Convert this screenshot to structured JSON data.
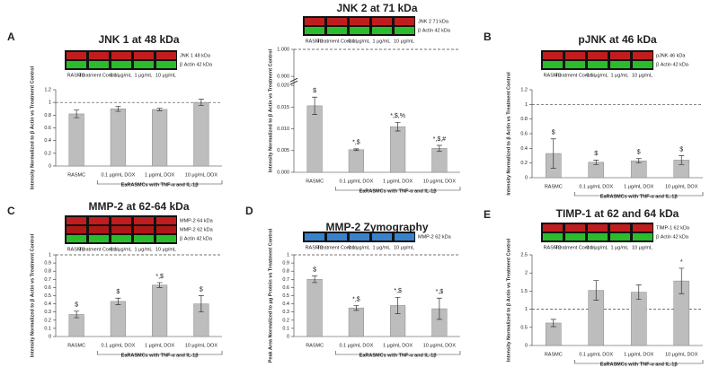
{
  "chart_data": [
    {
      "type": "bar",
      "panel": "A",
      "title": "JNK 1 at 48 kDa",
      "blot": {
        "bands": [
          {
            "label": "JNK 1 48 kDa",
            "color": "#d42020"
          },
          {
            "label": "β Actin 42 kDa",
            "color": "#2fcf2f"
          }
        ],
        "lanes": [
          "RASMC",
          "Treatment Control",
          "0.1 μg/mL",
          "1 μg/mL",
          "10 μg/mL"
        ]
      },
      "ylabel": "Intensity Normalized to β Actin vs Treatment Control",
      "categories": [
        "RASMC",
        "0.1 μg/mL DOX",
        "1 μg/mL DOX",
        "10 μg/mL DOX"
      ],
      "group_label": "EaRASMCs with TNF-α and IL-1β",
      "series": [
        {
          "color": "#bdbdbd",
          "values": [
            0.82,
            0.9,
            0.89,
            1.0
          ],
          "errors": [
            0.06,
            0.04,
            0.02,
            0.05
          ],
          "value_labels": [
            null,
            null,
            null,
            null
          ]
        }
      ],
      "ylim": [
        0,
        1.2
      ],
      "yticks": [
        0,
        0.2,
        0.4,
        0.6,
        0.8,
        1,
        1.2
      ],
      "reference_line": 1
    },
    {
      "type": "bar",
      "title": "JNK 2 at 71 kDa",
      "blot": {
        "bands": [
          {
            "label": "JNK 2 71 kDa",
            "color": "#d42020"
          },
          {
            "label": "β Actin 42 kDa",
            "color": "#2fcf2f"
          }
        ],
        "lanes": [
          "RASMC",
          "Treatment Control",
          "0.1 μg/mL",
          "1 μg/mL",
          "10 μg/mL"
        ]
      },
      "ylabel": "Intensity Normalized to β Actin vs Treatment Control",
      "categories": [
        "RASMC",
        "0.1 μg/mL DOX",
        "1 μg/mL DOX",
        "10 μg/mL DOX"
      ],
      "group_label": "EaRASMCs with TNF-α and IL-1β",
      "series": [
        {
          "color": "#bdbdbd",
          "values": [
            0.0153,
            0.0052,
            0.0105,
            0.0055
          ],
          "errors": [
            0.002,
            0.0002,
            0.001,
            0.0007
          ],
          "value_labels": [
            "$",
            "*,$",
            "*,$,%",
            "*,$,#"
          ]
        }
      ],
      "ylim": [
        0,
        0.02
      ],
      "yticks": [
        {
          "value": 0,
          "label": "0.000"
        },
        {
          "value": 0.005,
          "label": "0.005"
        },
        {
          "value": 0.01,
          "label": "0.010"
        },
        {
          "value": 0.015,
          "label": "0.015"
        },
        {
          "value": 0.02,
          "label": "0.020"
        }
      ],
      "ylim_upper": [
        0.9,
        1.0
      ],
      "yticks_upper": [
        {
          "value": 0.9,
          "label": "0.900"
        },
        {
          "value": 1.0,
          "label": "1.000"
        }
      ],
      "reference_line": 1
    },
    {
      "type": "bar",
      "panel": "B",
      "title": "pJNK at 46 kDa",
      "blot": {
        "bands": [
          {
            "label": "pJNK 46 kDa",
            "color": "#d42020"
          },
          {
            "label": "β Actin 42 kDa",
            "color": "#2fcf2f"
          }
        ],
        "lanes": [
          "RASMC",
          "Treatment Control",
          "0.1 μg/mL",
          "1 μg/mL",
          "10 μg/mL"
        ]
      },
      "ylabel": "Intensity Normalized to β Actin vs Treatment Control",
      "categories": [
        "RASMC",
        "0.1 μg/mL DOX",
        "1 μg/mL DOX",
        "10 μg/mL DOX"
      ],
      "group_label": "EaRASMCs with TNF-α and IL-1β",
      "series": [
        {
          "color": "#bdbdbd",
          "values": [
            0.33,
            0.21,
            0.23,
            0.24
          ],
          "errors": [
            0.2,
            0.03,
            0.03,
            0.06
          ],
          "value_labels": [
            "$",
            "$",
            "$",
            "$"
          ]
        }
      ],
      "ylim": [
        0,
        1.2
      ],
      "yticks": [
        0,
        0.2,
        0.4,
        0.6,
        0.8,
        1,
        1.2
      ],
      "reference_line": 1
    },
    {
      "type": "bar",
      "panel": "C",
      "title": "MMP-2 at 62-64 kDa",
      "blot": {
        "bands": [
          {
            "label": "MMP-2 64 kDa",
            "color": "#d42020"
          },
          {
            "label": "MMP-2 62 kDa",
            "color": "#c01818"
          },
          {
            "label": "β Actin 42 kDa",
            "color": "#2fcf2f"
          }
        ],
        "lanes": [
          "RASMC",
          "Treatment Control",
          "0.1 μg/mL",
          "1 μg/mL",
          "10 μg/mL"
        ]
      },
      "ylabel": "Intensity Normalized to β Actin vs Treatment Control",
      "categories": [
        "RASMC",
        "0.1 μg/mL DOX",
        "1 μg/mL DOX",
        "10 μg/mL DOX"
      ],
      "group_label": "EaRASMCs with TNF-α and IL-1β",
      "series": [
        {
          "color": "#bdbdbd",
          "values": [
            0.27,
            0.43,
            0.63,
            0.4
          ],
          "errors": [
            0.04,
            0.04,
            0.03,
            0.1
          ],
          "value_labels": [
            "$",
            "$",
            "*,$",
            "$"
          ]
        }
      ],
      "ylim": [
        0,
        1
      ],
      "yticks": [
        0,
        0.1,
        0.2,
        0.3,
        0.4,
        0.5,
        0.6,
        0.7,
        0.8,
        0.9,
        1
      ],
      "reference_line": 1
    },
    {
      "type": "bar",
      "panel": "D",
      "title": "MMP-2 Zymography",
      "blot": {
        "bands": [
          {
            "label": "MMP-2 62 kDa",
            "color": "#3d8fe0"
          }
        ],
        "lanes": [
          "RASMC",
          "Treatment Control",
          "0.1 μg/mL",
          "1 μg/mL",
          "10 μg/mL"
        ]
      },
      "ylabel": "Peak Area Normalized to μg Protein vs Treatment Control",
      "categories": [
        "RASMC",
        "0.1 μg/mL DOX",
        "1 μg/mL DOX",
        "10 μg/mL DOX"
      ],
      "group_label": "EaRASMCs with TNF-α and IL-1β",
      "series": [
        {
          "color": "#bdbdbd",
          "values": [
            0.7,
            0.35,
            0.38,
            0.34
          ],
          "errors": [
            0.04,
            0.03,
            0.1,
            0.13
          ],
          "value_labels": [
            "$",
            "*,$",
            "*,$",
            "*,$"
          ]
        }
      ],
      "ylim": [
        0,
        1
      ],
      "yticks": [
        0,
        0.1,
        0.2,
        0.3,
        0.4,
        0.5,
        0.6,
        0.7,
        0.8,
        0.9,
        1
      ],
      "reference_line": 1
    },
    {
      "type": "bar",
      "panel": "E",
      "title": "TIMP-1 at 62 and 64 kDa",
      "blot": {
        "bands": [
          {
            "label": "TIMP-1 62 kDa",
            "color": "#d42020"
          },
          {
            "label": "β Actin 42 kDa",
            "color": "#2fcf2f"
          }
        ],
        "lanes": [
          "RASMC",
          "Treatment Control",
          "0.1 μg/mL",
          "1 μg/mL",
          "10 μg/mL"
        ]
      },
      "ylabel": "Intensity Normalized to β Actin vs Treatment Control",
      "categories": [
        "RASMC",
        "0.1 μg/mL DOX",
        "1 μg/mL DOX",
        "10 μg/mL DOX"
      ],
      "group_label": "EaRASMCs with TNF-α and IL-1β",
      "series": [
        {
          "color": "#bdbdbd",
          "values": [
            0.62,
            1.52,
            1.47,
            1.78
          ],
          "errors": [
            0.1,
            0.27,
            0.2,
            0.35
          ],
          "value_labels": [
            null,
            null,
            null,
            "*"
          ]
        }
      ],
      "ylim": [
        0,
        2.5
      ],
      "yticks": [
        0,
        0.5,
        1,
        1.5,
        2,
        2.5
      ],
      "reference_line": 1
    }
  ]
}
